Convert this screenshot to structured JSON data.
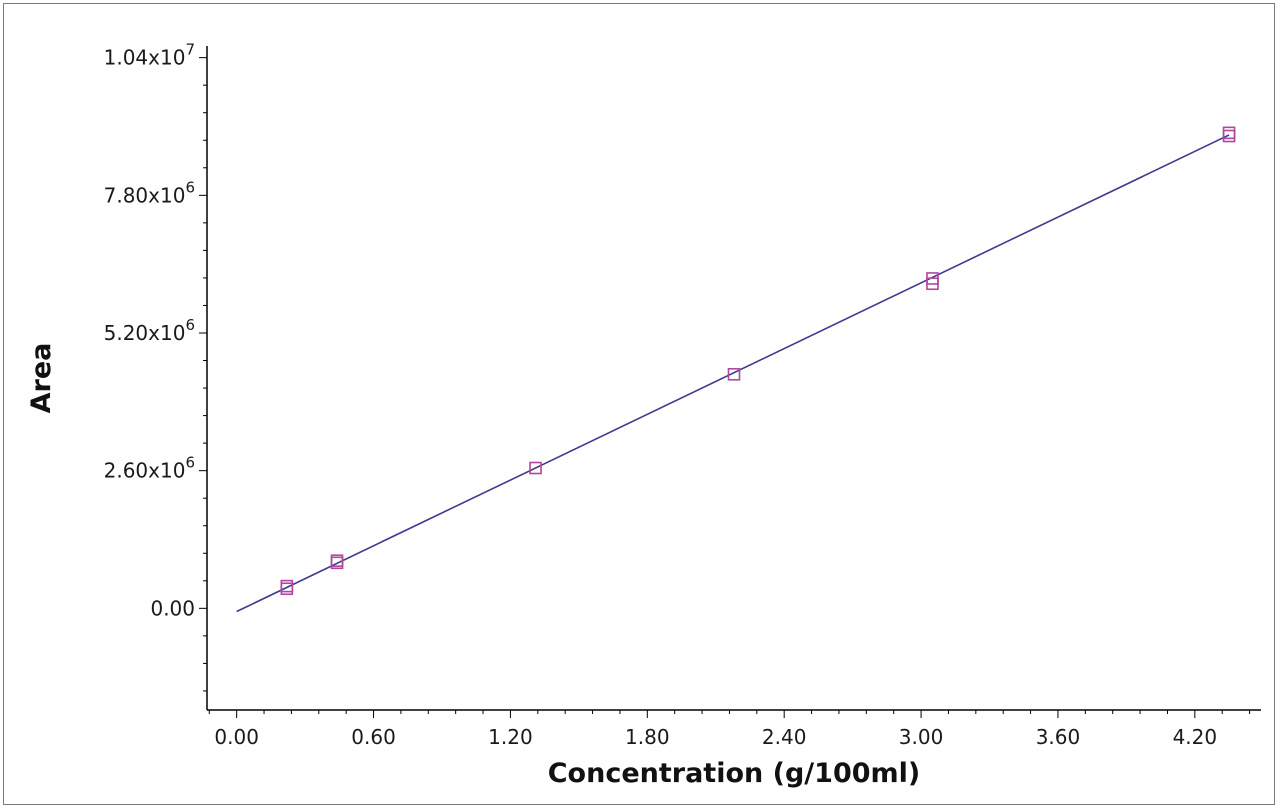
{
  "chart_data": {
    "type": "scatter",
    "title": "",
    "xlabel": "Concentration (g/100ml)",
    "ylabel": "Area",
    "xlim": [
      -0.13,
      4.49
    ],
    "ylim": [
      -1920000,
      10620000
    ],
    "x_ticks": [
      {
        "value": 0.0,
        "label": "0.00"
      },
      {
        "value": 0.6,
        "label": "0.60"
      },
      {
        "value": 1.2,
        "label": "1.20"
      },
      {
        "value": 1.8,
        "label": "1.80"
      },
      {
        "value": 2.4,
        "label": "2.40"
      },
      {
        "value": 3.0,
        "label": "3.00"
      },
      {
        "value": 3.6,
        "label": "3.60"
      },
      {
        "value": 4.2,
        "label": "4.20"
      }
    ],
    "y_ticks": [
      {
        "value": 0,
        "mantissa": "0.00",
        "exponent": ""
      },
      {
        "value": 2600000,
        "mantissa": "2.60x10",
        "exponent": "6"
      },
      {
        "value": 5200000,
        "mantissa": "5.20x10",
        "exponent": "6"
      },
      {
        "value": 7800000,
        "mantissa": "7.80x10",
        "exponent": "6"
      },
      {
        "value": 10400000,
        "mantissa": "1.04x10",
        "exponent": "7"
      }
    ],
    "series": [
      {
        "points": [
          {
            "x": 0.22,
            "y": 420000
          },
          {
            "x": 0.22,
            "y": 370000
          },
          {
            "x": 0.44,
            "y": 900000
          },
          {
            "x": 0.44,
            "y": 860000
          },
          {
            "x": 1.31,
            "y": 2650000
          },
          {
            "x": 2.18,
            "y": 4420000
          },
          {
            "x": 3.05,
            "y": 6230000
          },
          {
            "x": 3.05,
            "y": 6130000
          },
          {
            "x": 4.35,
            "y": 8980000
          },
          {
            "x": 4.35,
            "y": 8920000
          }
        ],
        "color": "#b0479d",
        "marker": "open-square"
      }
    ],
    "fit_line": {
      "x": [
        0.0,
        4.35
      ],
      "y": [
        -60000,
        8940000
      ],
      "color": "#3d3a8f"
    },
    "grid": false,
    "legend": "none"
  }
}
